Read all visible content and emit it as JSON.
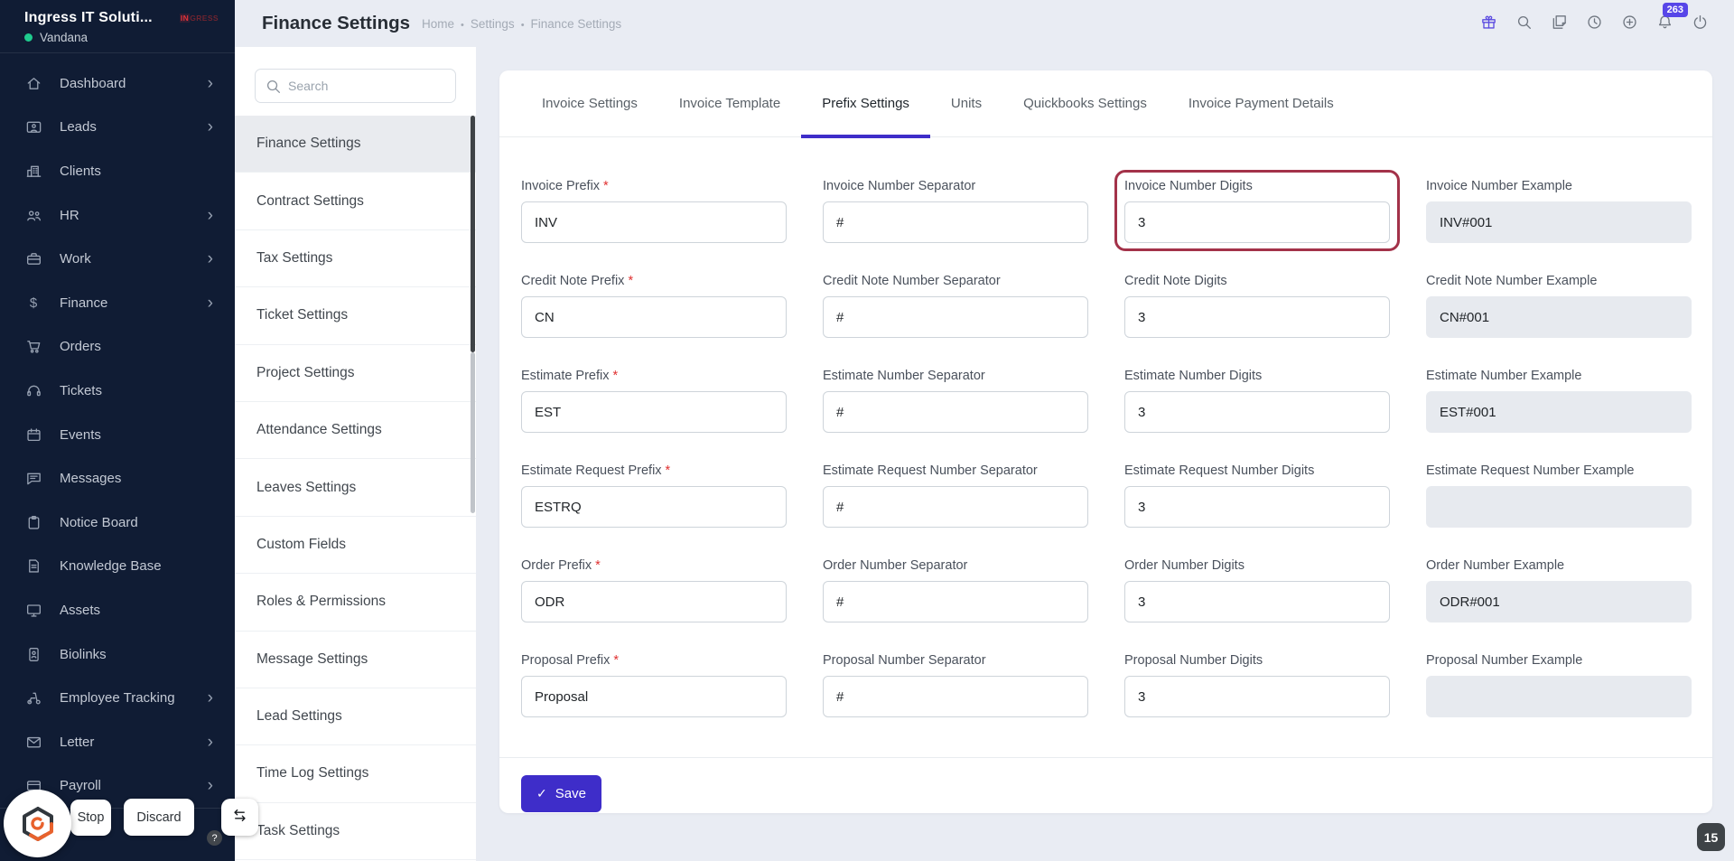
{
  "app": {
    "workspace_name": "Ingress IT Soluti...",
    "brand_logo": {
      "highlight": "IN",
      "rest": "GRESS"
    },
    "user_name": "Vandana"
  },
  "sidebar": {
    "items": [
      {
        "label": "Dashboard",
        "icon": "home",
        "chevron": true
      },
      {
        "label": "Leads",
        "icon": "leads",
        "chevron": true
      },
      {
        "label": "Clients",
        "icon": "clients"
      },
      {
        "label": "HR",
        "icon": "hr",
        "chevron": true
      },
      {
        "label": "Work",
        "icon": "work",
        "chevron": true
      },
      {
        "label": "Finance",
        "icon": "finance",
        "chevron": true
      },
      {
        "label": "Orders",
        "icon": "orders"
      },
      {
        "label": "Tickets",
        "icon": "tickets"
      },
      {
        "label": "Events",
        "icon": "events"
      },
      {
        "label": "Messages",
        "icon": "messages"
      },
      {
        "label": "Notice Board",
        "icon": "notice"
      },
      {
        "label": "Knowledge Base",
        "icon": "knowledge"
      },
      {
        "label": "Assets",
        "icon": "assets"
      },
      {
        "label": "Biolinks",
        "icon": "biolinks"
      },
      {
        "label": "Employee Tracking",
        "icon": "tracking",
        "chevron": true
      },
      {
        "label": "Letter",
        "icon": "letter",
        "chevron": true
      },
      {
        "label": "Payroll",
        "icon": "payroll",
        "chevron": true
      }
    ]
  },
  "header": {
    "title": "Finance Settings",
    "breadcrumb_items": [
      {
        "label": "Home"
      },
      {
        "label": "Settings"
      },
      {
        "label": "Finance Settings"
      }
    ],
    "icons": [
      {
        "icon": "gift",
        "accent": true
      },
      {
        "icon": "search"
      },
      {
        "icon": "notes"
      },
      {
        "icon": "clock"
      },
      {
        "icon": "plus"
      },
      {
        "icon": "bell",
        "badge": "263"
      },
      {
        "icon": "power"
      }
    ]
  },
  "settings_nav": {
    "search_placeholder": "Search",
    "items": [
      {
        "label": "Finance Settings",
        "active": true
      },
      {
        "label": "Contract Settings"
      },
      {
        "label": "Tax Settings"
      },
      {
        "label": "Ticket Settings"
      },
      {
        "label": "Project Settings"
      },
      {
        "label": "Attendance Settings"
      },
      {
        "label": "Leaves Settings"
      },
      {
        "label": "Custom Fields"
      },
      {
        "label": "Roles & Permissions"
      },
      {
        "label": "Message Settings"
      },
      {
        "label": "Lead Settings"
      },
      {
        "label": "Time Log Settings"
      },
      {
        "label": "Task Settings"
      }
    ]
  },
  "main": {
    "tabs": [
      {
        "label": "Invoice Settings"
      },
      {
        "label": "Invoice Template"
      },
      {
        "label": "Prefix Settings",
        "active": true
      },
      {
        "label": "Units"
      },
      {
        "label": "Quickbooks Settings"
      },
      {
        "label": "Invoice Payment Details"
      }
    ],
    "required_marker": "*",
    "fields": [
      {
        "label": "Invoice Prefix",
        "required": true,
        "value": "INV"
      },
      {
        "label": "Invoice Number Separator",
        "value": "#"
      },
      {
        "label": "Invoice Number Digits",
        "value": "3",
        "highlighted": true
      },
      {
        "label": "Invoice Number Example",
        "value": "INV#001",
        "readonly": true
      },
      {
        "label": "Credit Note Prefix",
        "required": true,
        "value": "CN"
      },
      {
        "label": "Credit Note Number Separator",
        "value": "#"
      },
      {
        "label": "Credit Note Digits",
        "value": "3"
      },
      {
        "label": "Credit Note Number Example",
        "value": "CN#001",
        "readonly": true
      },
      {
        "label": "Estimate Prefix",
        "required": true,
        "value": "EST"
      },
      {
        "label": "Estimate Number Separator",
        "value": "#"
      },
      {
        "label": "Estimate Number Digits",
        "value": "3"
      },
      {
        "label": "Estimate Number Example",
        "value": "EST#001",
        "readonly": true
      },
      {
        "label": "Estimate Request Prefix",
        "required": true,
        "value": "ESTRQ"
      },
      {
        "label": "Estimate Request Number Separator",
        "value": "#"
      },
      {
        "label": "Estimate Request Number Digits",
        "value": "3"
      },
      {
        "label": "Estimate Request Number Example",
        "value": "",
        "readonly": true
      },
      {
        "label": "Order Prefix",
        "required": true,
        "value": "ODR"
      },
      {
        "label": "Order Number Separator",
        "value": "#"
      },
      {
        "label": "Order Number Digits",
        "value": "3"
      },
      {
        "label": "Order Number Example",
        "value": "ODR#001",
        "readonly": true
      },
      {
        "label": "Proposal Prefix",
        "required": true,
        "value": "Proposal"
      },
      {
        "label": "Proposal Number Separator",
        "value": "#"
      },
      {
        "label": "Proposal Number Digits",
        "value": "3"
      },
      {
        "label": "Proposal Number Example",
        "value": "",
        "readonly": true
      }
    ],
    "save_label": "Save"
  },
  "overlay": {
    "stop_label": "Stop",
    "discard_label": "Discard",
    "help_label": "?",
    "page_badge": "15"
  },
  "colors": {
    "accent": "#3e2dc9",
    "highlight_box": "#a33249",
    "notification": "#5746e8",
    "brand_red": "#e53238",
    "online_green": "#1fcb8e",
    "sidebar_bg": "#101c34"
  }
}
